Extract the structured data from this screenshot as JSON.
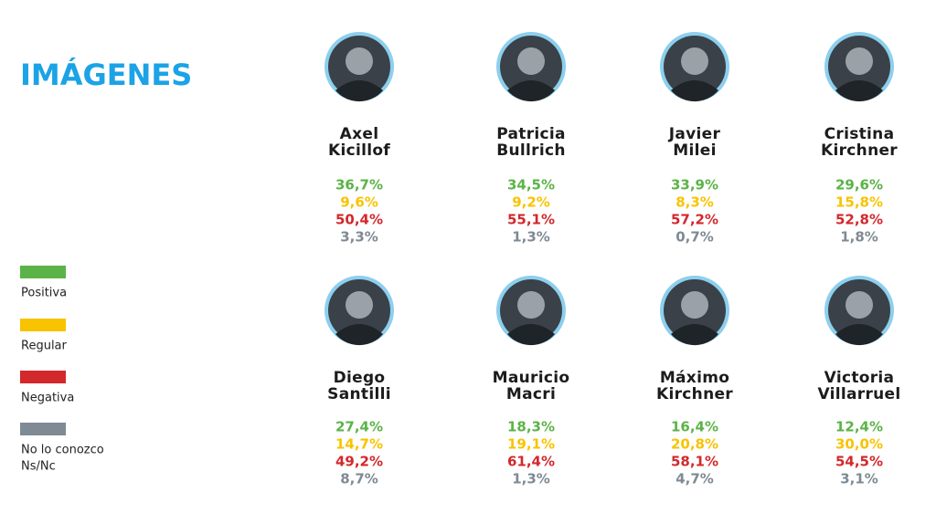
{
  "title": "IMÁGENES",
  "legend": [
    {
      "lines": [
        "Positiva"
      ],
      "color": "#5bb347"
    },
    {
      "lines": [
        "Regular"
      ],
      "color": "#f8c300"
    },
    {
      "lines": [
        "Negativa"
      ],
      "color": "#d3282c"
    },
    {
      "lines": [
        "No lo conozco",
        "Ns/Nc"
      ],
      "color": "#7e8a94"
    }
  ],
  "people": [
    {
      "name": [
        "Axel",
        "Kicillof"
      ],
      "values": [
        "36,7%",
        "9,6%",
        "50,4%",
        "3,3%"
      ]
    },
    {
      "name": [
        "Patricia",
        "Bullrich"
      ],
      "values": [
        "34,5%",
        "9,2%",
        "55,1%",
        "1,3%"
      ]
    },
    {
      "name": [
        "Javier",
        "Milei"
      ],
      "values": [
        "33,9%",
        "8,3%",
        "57,2%",
        "0,7%"
      ]
    },
    {
      "name": [
        "Cristina",
        "Kirchner"
      ],
      "values": [
        "29,6%",
        "15,8%",
        "52,8%",
        "1,8%"
      ]
    },
    {
      "name": [
        "Diego",
        "Santilli"
      ],
      "values": [
        "27,4%",
        "14,7%",
        "49,2%",
        "8,7%"
      ]
    },
    {
      "name": [
        "Mauricio",
        "Macri"
      ],
      "values": [
        "18,3%",
        "19,1%",
        "61,4%",
        "1,3%"
      ]
    },
    {
      "name": [
        "Máximo",
        "Kirchner"
      ],
      "values": [
        "16,4%",
        "20,8%",
        "58,1%",
        "4,7%"
      ]
    },
    {
      "name": [
        "Victoria",
        "Villarruel"
      ],
      "values": [
        "12,4%",
        "30,0%",
        "54,5%",
        "3,1%"
      ]
    }
  ]
}
